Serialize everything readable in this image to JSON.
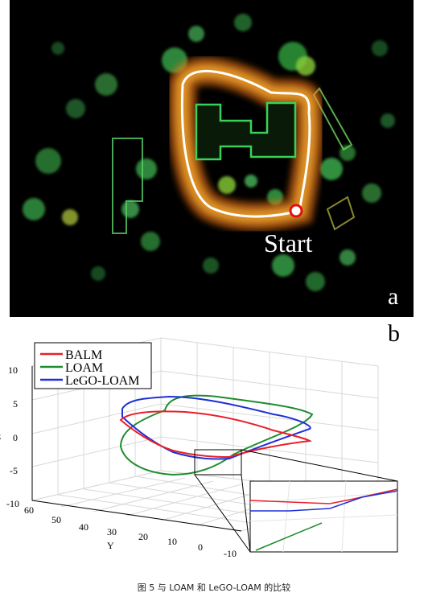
{
  "panel_a": {
    "letter": "a",
    "start_label": "Start"
  },
  "panel_b": {
    "letter": "b"
  },
  "chart_data": {
    "type": "line",
    "projection": "3d",
    "z_axis": {
      "ticks": [
        "10",
        "5",
        "0",
        "-5",
        "-10"
      ],
      "partial_label": "z"
    },
    "y_axis": {
      "label": "Y",
      "ticks": [
        "60",
        "50",
        "40",
        "30",
        "20",
        "10",
        "0",
        "-10"
      ]
    },
    "series": [
      {
        "name": "BALM",
        "color": "#e8202a"
      },
      {
        "name": "LOAM",
        "color": "#1f8c2e"
      },
      {
        "name": "LeGO-LOAM",
        "color": "#2030d8"
      }
    ],
    "inset": "zoomed-detail"
  },
  "caption": "图 5 与 LOAM 和 LeGO-LOAM 的比较"
}
